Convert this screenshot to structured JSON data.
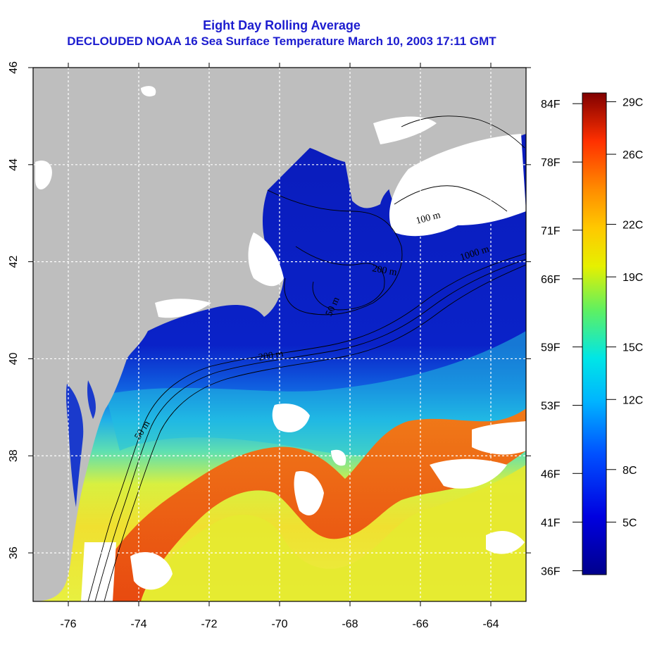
{
  "title": "Eight Day Rolling Average",
  "subtitle": "DECLOUDED NOAA 16 Sea Surface Temperature March 10, 2003 17:11 GMT",
  "map": {
    "lon_range": [
      -77,
      -63
    ],
    "lat_range": [
      35,
      46
    ],
    "lon_ticks": [
      "-76",
      "-74",
      "-72",
      "-70",
      "-68",
      "-66",
      "-64"
    ],
    "lat_ticks": [
      "36",
      "38",
      "40",
      "42",
      "44",
      "46"
    ],
    "contour_labels": [
      "100 m",
      "1000 m",
      "200 m",
      "50 m",
      "50 m",
      "200 m"
    ],
    "colors": {
      "land": "#bebebe",
      "cloud": "#ffffff",
      "cold": "#0a1ab8",
      "warm": "#f06a10"
    }
  },
  "colorbar": {
    "min_celsius": 2,
    "max_celsius": 29.5,
    "fahrenheit_labels": [
      "84F",
      "78F",
      "71F",
      "66F",
      "59F",
      "53F",
      "46F",
      "41F",
      "36F"
    ],
    "celsius_labels": [
      "29C",
      "26C",
      "22C",
      "19C",
      "15C",
      "12C",
      "8C",
      "5C"
    ]
  }
}
